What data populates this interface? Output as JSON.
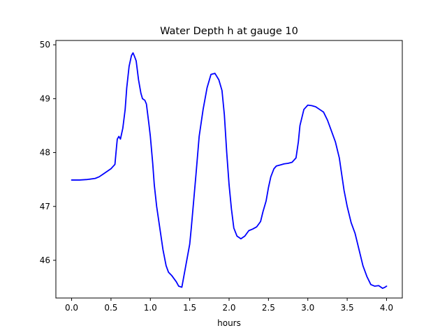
{
  "chart_data": {
    "type": "line",
    "title": "Water Depth h at gauge 10",
    "xlabel": "hours",
    "ylabel": "",
    "xlim": [
      -0.2,
      4.2
    ],
    "ylim": [
      45.3,
      50.08
    ],
    "xticks": [
      0.0,
      0.5,
      1.0,
      1.5,
      2.0,
      2.5,
      3.0,
      3.5,
      4.0
    ],
    "xtick_labels": [
      "0.0",
      "0.5",
      "1.0",
      "1.5",
      "2.0",
      "2.5",
      "3.0",
      "3.5",
      "4.0"
    ],
    "yticks": [
      46,
      47,
      48,
      49,
      50
    ],
    "ytick_labels": [
      "46",
      "47",
      "48",
      "49",
      "50"
    ],
    "grid": false,
    "legend": "none",
    "series": [
      {
        "color": "#0000ff",
        "x": [
          0.0,
          0.1,
          0.2,
          0.3,
          0.35,
          0.4,
          0.45,
          0.5,
          0.55,
          0.57,
          0.58,
          0.6,
          0.62,
          0.65,
          0.68,
          0.7,
          0.73,
          0.76,
          0.78,
          0.8,
          0.82,
          0.85,
          0.88,
          0.9,
          0.93,
          0.95,
          0.98,
          1.0,
          1.03,
          1.05,
          1.08,
          1.1,
          1.13,
          1.16,
          1.2,
          1.23,
          1.27,
          1.3,
          1.33,
          1.36,
          1.4,
          1.45,
          1.5,
          1.52,
          1.55,
          1.58,
          1.62,
          1.67,
          1.72,
          1.77,
          1.82,
          1.87,
          1.91,
          1.94,
          1.97,
          2.0,
          2.03,
          2.06,
          2.1,
          2.15,
          2.2,
          2.25,
          2.3,
          2.35,
          2.4,
          2.43,
          2.47,
          2.5,
          2.53,
          2.57,
          2.6,
          2.65,
          2.7,
          2.75,
          2.8,
          2.85,
          2.88,
          2.9,
          2.95,
          3.0,
          3.05,
          3.1,
          3.15,
          3.2,
          3.25,
          3.3,
          3.35,
          3.4,
          3.43,
          3.46,
          3.5,
          3.55,
          3.6,
          3.65,
          3.7,
          3.75,
          3.8,
          3.85,
          3.9,
          3.95,
          3.98,
          4.0
        ],
        "y": [
          47.49,
          47.49,
          47.5,
          47.52,
          47.55,
          47.6,
          47.65,
          47.7,
          47.78,
          48.1,
          48.25,
          48.3,
          48.25,
          48.45,
          48.8,
          49.2,
          49.6,
          49.8,
          49.85,
          49.78,
          49.7,
          49.35,
          49.1,
          49.0,
          48.97,
          48.9,
          48.55,
          48.3,
          47.8,
          47.4,
          47.0,
          46.8,
          46.5,
          46.2,
          45.9,
          45.78,
          45.72,
          45.66,
          45.6,
          45.52,
          45.5,
          45.9,
          46.3,
          46.6,
          47.1,
          47.6,
          48.3,
          48.8,
          49.2,
          49.45,
          49.47,
          49.35,
          49.15,
          48.7,
          48.0,
          47.4,
          46.95,
          46.6,
          46.45,
          46.4,
          46.45,
          46.55,
          46.58,
          46.62,
          46.72,
          46.9,
          47.1,
          47.35,
          47.55,
          47.7,
          47.75,
          47.77,
          47.79,
          47.8,
          47.82,
          47.9,
          48.2,
          48.5,
          48.8,
          48.88,
          48.87,
          48.85,
          48.8,
          48.75,
          48.6,
          48.4,
          48.2,
          47.9,
          47.6,
          47.3,
          47.0,
          46.7,
          46.5,
          46.2,
          45.9,
          45.7,
          45.55,
          45.52,
          45.53,
          45.48,
          45.5,
          45.52
        ]
      }
    ]
  }
}
